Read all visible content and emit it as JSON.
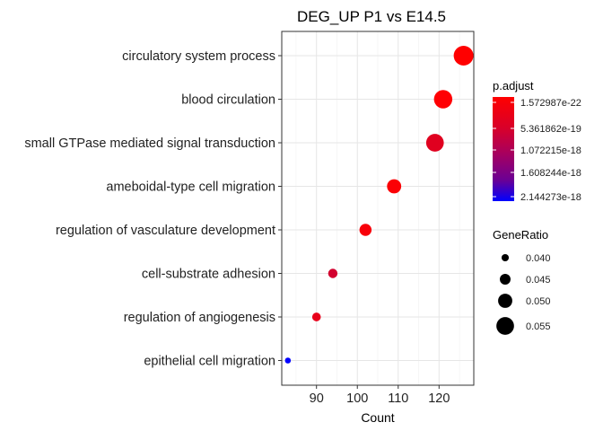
{
  "chart_data": {
    "type": "scatter",
    "title": "DEG_UP P1 vs E14.5",
    "xlabel": "Count",
    "ylabel": "",
    "xlim": [
      81.5,
      128.5
    ],
    "xticks": [
      "90",
      "100",
      "110",
      "120"
    ],
    "xtick_values": [
      90,
      100,
      110,
      120
    ],
    "grid": true,
    "legend_position": "right",
    "color_legend": {
      "title": "p.adjust",
      "labels": [
        "1.572987e-22",
        "5.361862e-19",
        "1.072215e-18",
        "1.608244e-18",
        "2.144273e-18"
      ],
      "colors": [
        "#ff0000",
        "#c20040",
        "#8a0075",
        "#5200b0",
        "#0000ff"
      ]
    },
    "size_legend": {
      "title": "GeneRatio",
      "labels": [
        "0.040",
        "0.045",
        "0.050",
        "0.055"
      ],
      "values": [
        0.04,
        0.045,
        0.05,
        0.055
      ]
    },
    "categories": [
      "circulatory system process",
      "blood circulation",
      "small GTPase mediated signal transduction",
      "ameboidal-type cell migration",
      "regulation of vasculature development",
      "cell-substrate adhesion",
      "regulation of angiogenesis",
      "epithelial cell migration"
    ],
    "points": [
      {
        "term": "circulatory system process",
        "count": 126,
        "gene_ratio": 0.058,
        "p_adjust": 1.6e-22,
        "color": "#ff0000"
      },
      {
        "term": "blood circulation",
        "count": 121,
        "gene_ratio": 0.056,
        "p_adjust": 1e-20,
        "color": "#ff0004"
      },
      {
        "term": "small GTPase mediated signal transduction",
        "count": 119,
        "gene_ratio": 0.055,
        "p_adjust": 3e-19,
        "color": "#e0001f"
      },
      {
        "term": "ameboidal-type cell migration",
        "count": 109,
        "gene_ratio": 0.05,
        "p_adjust": 5e-20,
        "color": "#fb0005"
      },
      {
        "term": "regulation of vasculature development",
        "count": 102,
        "gene_ratio": 0.047,
        "p_adjust": 8e-20,
        "color": "#f8000a"
      },
      {
        "term": "cell-substrate adhesion",
        "count": 94,
        "gene_ratio": 0.043,
        "p_adjust": 6.5e-19,
        "color": "#d2002e"
      },
      {
        "term": "regulation of angiogenesis",
        "count": 90,
        "gene_ratio": 0.042,
        "p_adjust": 2.5e-19,
        "color": "#e8001a"
      },
      {
        "term": "epithelial cell migration",
        "count": 83,
        "gene_ratio": 0.038,
        "p_adjust": 2.144273e-18,
        "color": "#0000ff"
      }
    ]
  }
}
